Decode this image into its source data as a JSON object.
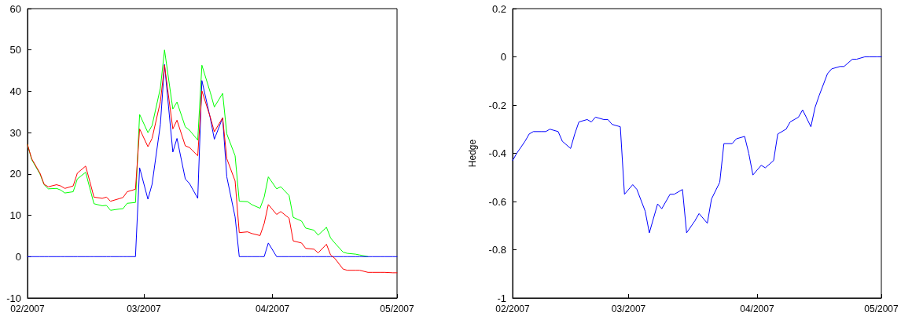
{
  "chart_data": [
    {
      "type": "line",
      "marker": "none",
      "line_style": "solid",
      "x": [
        "2007-02-01",
        "2007-02-02",
        "2007-02-04",
        "2007-02-05",
        "2007-02-06",
        "2007-02-08",
        "2007-02-09",
        "2007-02-10",
        "2007-02-12",
        "2007-02-13",
        "2007-02-15",
        "2007-02-16",
        "2007-02-17",
        "2007-02-19",
        "2007-02-20",
        "2007-02-21",
        "2007-02-23",
        "2007-02-24",
        "2007-02-25",
        "2007-02-27",
        "2007-02-28",
        "2007-03-02",
        "2007-03-03",
        "2007-03-05",
        "2007-03-06",
        "2007-03-08",
        "2007-03-09",
        "2007-03-11",
        "2007-03-12",
        "2007-03-14",
        "2007-03-15",
        "2007-03-17",
        "2007-03-18",
        "2007-03-20",
        "2007-03-21",
        "2007-03-23",
        "2007-03-24",
        "2007-03-26",
        "2007-03-27",
        "2007-03-29",
        "2007-03-30",
        "2007-03-31",
        "2007-04-02",
        "2007-04-03",
        "2007-04-05",
        "2007-04-06",
        "2007-04-08",
        "2007-04-09",
        "2007-04-11",
        "2007-04-12",
        "2007-04-14",
        "2007-04-15",
        "2007-04-16",
        "2007-04-18",
        "2007-04-19",
        "2007-04-21",
        "2007-04-22",
        "2007-04-24",
        "2007-04-25",
        "2007-04-27",
        "2007-04-28",
        "2007-04-30",
        "2007-05-01"
      ],
      "series": [
        {
          "color": "#00ff00",
          "values": [
            27.1,
            23.5,
            20.0,
            17.4,
            16.4,
            16.5,
            16.1,
            15.4,
            15.7,
            18.8,
            20.4,
            16.6,
            12.8,
            12.3,
            12.4,
            11.2,
            11.5,
            11.6,
            12.9,
            13.1,
            34.4,
            30.0,
            31.7,
            40.8,
            50.0,
            35.7,
            37.4,
            31.4,
            30.6,
            28.2,
            46.3,
            39.8,
            36.2,
            39.5,
            29.7,
            24.4,
            13.4,
            13.3,
            12.6,
            11.7,
            14.4,
            19.3,
            16.4,
            16.9,
            14.8,
            9.5,
            8.6,
            6.9,
            6.4,
            5.2,
            7.1,
            4.5,
            3.3,
            1.1,
            0.8,
            0.6,
            0.4,
            0,
            null,
            null,
            null,
            null,
            null
          ]
        },
        {
          "color": "#0000ff",
          "values": [
            0,
            0,
            0,
            0,
            0,
            0,
            0,
            0,
            0,
            0,
            0,
            0,
            0,
            0,
            0,
            0,
            0,
            0,
            0,
            0,
            21.5,
            13.9,
            17.5,
            32.0,
            46.5,
            25.3,
            28.6,
            18.8,
            17.7,
            14.1,
            42.6,
            33.6,
            28.4,
            33.6,
            19.3,
            9.6,
            0,
            0,
            0,
            0,
            0,
            3.3,
            0,
            0,
            0,
            0,
            0,
            0,
            0,
            0,
            0,
            0,
            0,
            0,
            0,
            0,
            0,
            0,
            0,
            0,
            0,
            0,
            0
          ]
        },
        {
          "color": "#ff0000",
          "values": [
            27.1,
            23.7,
            20.2,
            17.5,
            16.9,
            17.4,
            17.1,
            16.5,
            17.1,
            20.2,
            21.9,
            18.2,
            14.4,
            14.1,
            14.4,
            13.4,
            14.0,
            14.3,
            15.7,
            16.3,
            30.9,
            26.6,
            28.6,
            37.5,
            46.3,
            30.9,
            33.0,
            26.8,
            26.4,
            24.4,
            40.1,
            33.8,
            30.2,
            33.6,
            23.7,
            18.3,
            5.8,
            6.0,
            5.6,
            5.1,
            8.0,
            12.6,
            10.2,
            10.9,
            9.3,
            3.8,
            3.3,
            2.0,
            1.8,
            0.9,
            3.0,
            0.4,
            -0.4,
            -3.0,
            -3.3,
            -3.3,
            -3.3,
            -3.8,
            -3.8,
            -3.8,
            -3.8,
            -3.9,
            -3.9
          ]
        }
      ],
      "xlim": [
        "2007-02-01",
        "2007-05-01"
      ],
      "xticks": [
        {
          "value": "2007-02-01",
          "label": "02/2007"
        },
        {
          "value": "2007-03-01",
          "label": "03/2007"
        },
        {
          "value": "2007-04-01",
          "label": "04/2007"
        },
        {
          "value": "2007-05-01",
          "label": "05/2007"
        }
      ],
      "ylim": [
        -10,
        60
      ],
      "yticks": [
        -10,
        0,
        10,
        20,
        30,
        40,
        50,
        60
      ]
    },
    {
      "type": "line",
      "marker": "none",
      "line_style": "solid",
      "ylabel": "Hedge",
      "x": [
        "2007-02-01",
        "2007-02-02",
        "2007-02-04",
        "2007-02-05",
        "2007-02-06",
        "2007-02-08",
        "2007-02-09",
        "2007-02-10",
        "2007-02-12",
        "2007-02-13",
        "2007-02-15",
        "2007-02-16",
        "2007-02-17",
        "2007-02-19",
        "2007-02-20",
        "2007-02-21",
        "2007-02-23",
        "2007-02-24",
        "2007-02-25",
        "2007-02-27",
        "2007-02-28",
        "2007-03-02",
        "2007-03-03",
        "2007-03-05",
        "2007-03-06",
        "2007-03-08",
        "2007-03-09",
        "2007-03-11",
        "2007-03-12",
        "2007-03-14",
        "2007-03-15",
        "2007-03-17",
        "2007-03-18",
        "2007-03-20",
        "2007-03-21",
        "2007-03-23",
        "2007-03-24",
        "2007-03-26",
        "2007-03-27",
        "2007-03-29",
        "2007-03-30",
        "2007-03-31",
        "2007-04-02",
        "2007-04-03",
        "2007-04-05",
        "2007-04-06",
        "2007-04-08",
        "2007-04-09",
        "2007-04-11",
        "2007-04-12",
        "2007-04-14",
        "2007-04-15",
        "2007-04-16",
        "2007-04-18",
        "2007-04-19",
        "2007-04-21",
        "2007-04-22",
        "2007-04-24",
        "2007-04-25",
        "2007-04-27",
        "2007-04-28",
        "2007-04-30",
        "2007-05-01"
      ],
      "series": [
        {
          "color": "#0000ff",
          "values": [
            -0.43,
            -0.4,
            -0.35,
            -0.32,
            -0.31,
            -0.31,
            -0.31,
            -0.3,
            -0.31,
            -0.35,
            -0.38,
            -0.32,
            -0.27,
            -0.26,
            -0.27,
            -0.25,
            -0.26,
            -0.26,
            -0.28,
            -0.29,
            -0.57,
            -0.53,
            -0.55,
            -0.64,
            -0.73,
            -0.61,
            -0.63,
            -0.57,
            -0.57,
            -0.55,
            -0.73,
            -0.68,
            -0.65,
            -0.69,
            -0.59,
            -0.52,
            -0.36,
            -0.36,
            -0.34,
            -0.33,
            -0.4,
            -0.49,
            -0.45,
            -0.46,
            -0.43,
            -0.32,
            -0.3,
            -0.27,
            -0.25,
            -0.22,
            -0.29,
            -0.21,
            -0.16,
            -0.07,
            -0.05,
            -0.04,
            -0.04,
            -0.01,
            -0.01,
            0,
            0,
            0,
            0
          ]
        }
      ],
      "xlim": [
        "2007-02-01",
        "2007-05-01"
      ],
      "xticks": [
        {
          "value": "2007-02-01",
          "label": "02/2007"
        },
        {
          "value": "2007-03-01",
          "label": "03/2007"
        },
        {
          "value": "2007-04-01",
          "label": "04/2007"
        },
        {
          "value": "2007-05-01",
          "label": "05/2007"
        }
      ],
      "ylim": [
        -1,
        0.2
      ],
      "yticks": [
        -1,
        -0.8,
        -0.6,
        -0.4,
        -0.2,
        0,
        0.2
      ]
    }
  ]
}
